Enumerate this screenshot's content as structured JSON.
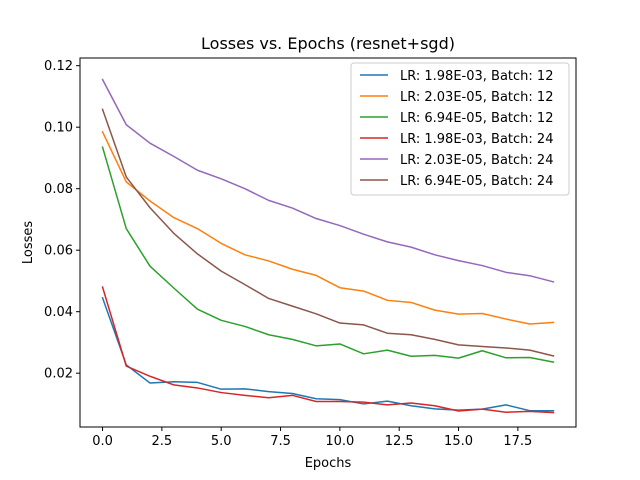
{
  "chart_data": {
    "type": "line",
    "title": "Losses vs. Epochs (resnet+sgd)",
    "xlabel": "Epochs",
    "ylabel": "Losses",
    "xlim": [
      -0.95,
      19.95
    ],
    "ylim": [
      0.0025,
      0.1225
    ],
    "xticks": [
      0.0,
      2.5,
      5.0,
      7.5,
      10.0,
      12.5,
      15.0,
      17.5
    ],
    "xtick_labels": [
      "0.0",
      "2.5",
      "5.0",
      "7.5",
      "10.0",
      "12.5",
      "15.0",
      "17.5"
    ],
    "yticks": [
      0.02,
      0.04,
      0.06,
      0.08,
      0.1,
      0.12
    ],
    "ytick_labels": [
      "0.02",
      "0.04",
      "0.06",
      "0.08",
      "0.10",
      "0.12"
    ],
    "grid": false,
    "legend_position": "top-right",
    "x": [
      0,
      1,
      2,
      3,
      4,
      5,
      6,
      7,
      8,
      9,
      10,
      11,
      12,
      13,
      14,
      15,
      16,
      17,
      18,
      19
    ],
    "series": [
      {
        "name": "LR: 1.98E-03, Batch: 12",
        "color": "#1f77b4",
        "values": [
          0.0445,
          0.0227,
          0.0168,
          0.0172,
          0.017,
          0.0148,
          0.0149,
          0.014,
          0.0134,
          0.0117,
          0.0114,
          0.01,
          0.0109,
          0.0094,
          0.0084,
          0.008,
          0.0083,
          0.0097,
          0.0078,
          0.0078
        ]
      },
      {
        "name": "LR: 2.03E-05, Batch: 12",
        "color": "#ff7f0e",
        "values": [
          0.0985,
          0.0822,
          0.076,
          0.0706,
          0.067,
          0.0622,
          0.0585,
          0.0565,
          0.0538,
          0.0518,
          0.0478,
          0.0467,
          0.0437,
          0.043,
          0.0405,
          0.0392,
          0.0394,
          0.0376,
          0.036,
          0.0365
        ]
      },
      {
        "name": "LR: 6.94E-05, Batch: 12",
        "color": "#2ca02c",
        "values": [
          0.0935,
          0.067,
          0.0548,
          0.0477,
          0.0408,
          0.0372,
          0.0352,
          0.0325,
          0.031,
          0.0289,
          0.0295,
          0.0263,
          0.0275,
          0.0255,
          0.0258,
          0.0249,
          0.0273,
          0.025,
          0.0251,
          0.0236
        ]
      },
      {
        "name": "LR: 1.98E-03, Batch: 24",
        "color": "#d62728",
        "values": [
          0.048,
          0.0223,
          0.019,
          0.0162,
          0.0152,
          0.0137,
          0.0128,
          0.012,
          0.0128,
          0.0108,
          0.0108,
          0.0106,
          0.0097,
          0.0103,
          0.0094,
          0.0077,
          0.0083,
          0.0073,
          0.0076,
          0.0072
        ]
      },
      {
        "name": "LR: 2.03E-05, Batch: 24",
        "color": "#9467bd",
        "values": [
          0.1155,
          0.1008,
          0.0948,
          0.0905,
          0.086,
          0.0832,
          0.08,
          0.0762,
          0.0737,
          0.0703,
          0.068,
          0.0652,
          0.0627,
          0.061,
          0.0585,
          0.0566,
          0.055,
          0.0528,
          0.0517,
          0.0497
        ]
      },
      {
        "name": "LR: 6.94E-05, Batch: 24",
        "color": "#8c564b",
        "values": [
          0.1058,
          0.0838,
          0.0738,
          0.0655,
          0.0588,
          0.0532,
          0.0488,
          0.0443,
          0.0418,
          0.0393,
          0.0363,
          0.0357,
          0.033,
          0.0325,
          0.031,
          0.0292,
          0.0287,
          0.0282,
          0.0275,
          0.0256
        ]
      }
    ]
  }
}
